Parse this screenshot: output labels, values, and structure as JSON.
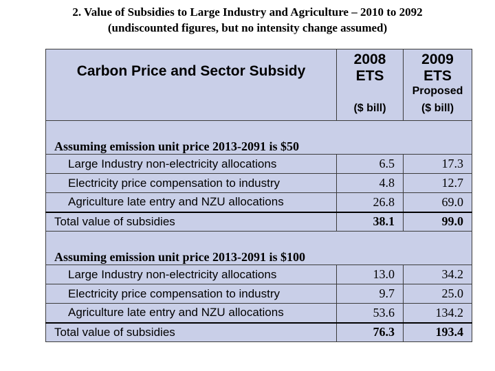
{
  "title": {
    "line1": "2. Value of Subsidies to Large Industry and Agriculture – 2010 to 2092",
    "line2": "(undiscounted figures, but no intensity change assumed)"
  },
  "table": {
    "header": {
      "title": "Carbon Price and Sector Subsidy",
      "col1": {
        "line1": "2008",
        "line2": "ETS",
        "line3": "",
        "unit": "($ bill)"
      },
      "col2": {
        "line1": "2009",
        "line2": "ETS",
        "line3": "Proposed",
        "unit": "($ bill)"
      }
    },
    "sections": [
      {
        "heading": "Assuming emission unit price 2013-2091 is $50",
        "rows": [
          {
            "label": "Large Industry non-electricity allocations",
            "v2008": "6.5",
            "v2009": "17.3"
          },
          {
            "label": "Electricity price compensation to industry",
            "v2008": "4.8",
            "v2009": "12.7"
          },
          {
            "label": "Agriculture late entry and NZU allocations",
            "v2008": "26.8",
            "v2009": "69.0"
          }
        ],
        "total": {
          "label": "Total value of subsidies",
          "v2008": "38.1",
          "v2009": "99.0"
        }
      },
      {
        "heading": "Assuming emission unit price 2013-2091 is $100",
        "rows": [
          {
            "label": "Large Industry non-electricity allocations",
            "v2008": "13.0",
            "v2009": "34.2"
          },
          {
            "label": "Electricity price compensation to industry",
            "v2008": "9.7",
            "v2009": "25.0"
          },
          {
            "label": "Agriculture late entry and NZU allocations",
            "v2008": "53.6",
            "v2009": "134.2"
          }
        ],
        "total": {
          "label": "Total value of subsidies",
          "v2008": "76.3",
          "v2009": "193.4"
        }
      }
    ]
  },
  "colors": {
    "table_background": "#c9cfe8",
    "border": "#3b3b3b"
  }
}
